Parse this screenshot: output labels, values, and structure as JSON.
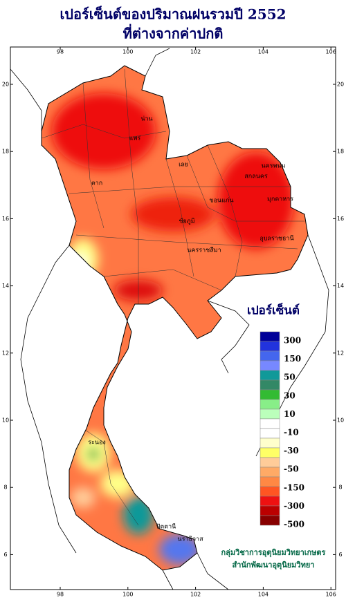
{
  "title": [
    "เปอร์เซ็นต์ของปริมาณฝนรวมปี 2552",
    "ที่ต่างจากค่าปกติ"
  ],
  "longitude_ticks": [
    98,
    100,
    102,
    104,
    106
  ],
  "latitude_ticks": [
    6,
    8,
    10,
    12,
    14,
    16,
    18,
    20
  ],
  "legend": {
    "title": "เปอร์เซ็นต์",
    "labels": [
      "300",
      "150",
      "50",
      "30",
      "10",
      "-10",
      "-30",
      "-50",
      "-150",
      "-300",
      "-500"
    ],
    "colors": [
      "#000099",
      "#2233dd",
      "#4466ee",
      "#7788ff",
      "#119999",
      "#338866",
      "#33bb33",
      "#88ee88",
      "#bbffbb",
      "#ffffff",
      "#ffffff",
      "#ffffcc",
      "#ffff66",
      "#ffcc99",
      "#ffaa66",
      "#ff8844",
      "#ff5522",
      "#ee1111",
      "#bb0000",
      "#880000"
    ]
  },
  "provinces": [
    "น่าน",
    "แพร่",
    "เลย",
    "นครพนม",
    "สกลนคร",
    "มุกดาหาร",
    "ขอนแก่น",
    "ชัยภูมิ",
    "นครราชสีมา",
    "อุบลราชธานี",
    "ตาก",
    "ระนอง",
    "ปัตตานี",
    "นราธิวาส"
  ],
  "credits": [
    "กลุ่มวิชาการอุตุนิยมวิทยาเกษตร",
    "สำนักพัฒนาอุตุนิยมวิทยา"
  ]
}
